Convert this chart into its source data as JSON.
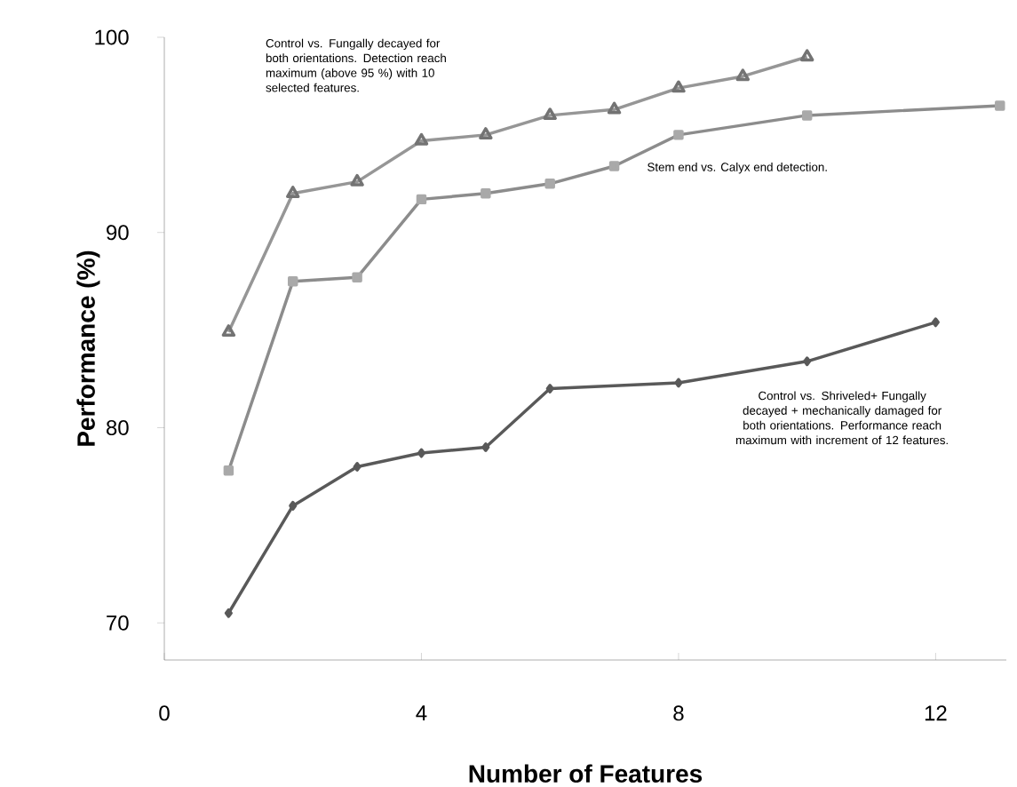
{
  "chart_data": {
    "type": "line",
    "xlabel": "Number of Features",
    "ylabel": "Performance (%)",
    "xlim": [
      0,
      13.1
    ],
    "ylim": [
      68.1,
      100
    ],
    "xticks": [
      0,
      4,
      8,
      12
    ],
    "yticks": [
      70,
      80,
      90,
      100
    ],
    "grid": false,
    "series": [
      {
        "color": "#969696",
        "marker": "triangle",
        "x": [
          1,
          2,
          3,
          4,
          5,
          6,
          7,
          8,
          9,
          10
        ],
        "values": [
          84.9,
          92.0,
          92.6,
          94.7,
          95.0,
          96.0,
          96.3,
          97.4,
          98.0,
          99.0
        ]
      },
      {
        "color": "#8c8c8c",
        "marker": "square",
        "x": [
          1,
          2,
          3,
          4,
          5,
          6,
          7,
          8,
          10,
          13
        ],
        "values": [
          77.8,
          87.5,
          87.7,
          91.7,
          92.0,
          92.5,
          93.4,
          95.0,
          96.0,
          96.5
        ]
      },
      {
        "color": "#595959",
        "marker": "diamond",
        "x": [
          1,
          2,
          3,
          4,
          5,
          6,
          8,
          10,
          12
        ],
        "values": [
          70.5,
          76.0,
          78.0,
          78.7,
          79.0,
          82.0,
          82.3,
          83.4,
          85.4
        ]
      }
    ],
    "annotations": [
      "Control vs. Fungally decayed for both orientations. Detection reach maximum (above 95 %) with 10 selected features.",
      "Stem end vs. Calyx end detection.",
      "Control vs. Shriveled+ Fungally decayed + mechanically damaged for both orientations. Performance reach maximum  with increment of 12 features."
    ]
  }
}
